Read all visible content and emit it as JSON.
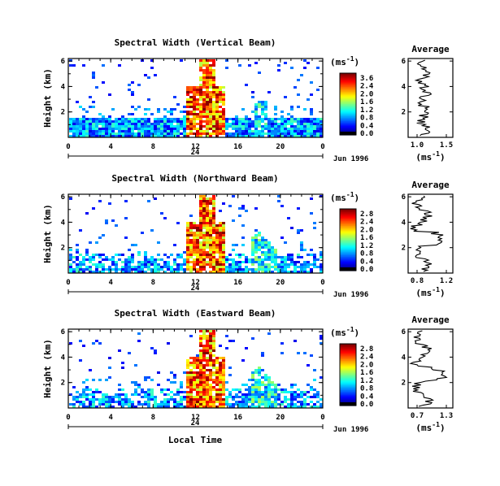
{
  "chart_data": [
    {
      "type": "heatmap",
      "title": "Spectral Width (Vertical Beam)",
      "ylabel": "Height (km)",
      "yticks": [
        "6",
        "4",
        "2"
      ],
      "xticks": [
        "0",
        "4",
        "8",
        "12",
        "16",
        "20",
        "0"
      ],
      "day_label": "24",
      "date_label": "Jun 1996",
      "colorbar": {
        "unit": "(ms",
        "unit_sup": "-1",
        "unit_close": ")",
        "ticks": [
          "3.6",
          "2.4",
          "2.0",
          "1.6",
          "1.2",
          "0.8",
          "0.4",
          "0.0"
        ]
      },
      "profile": {
        "title": "Average",
        "xticks": [
          "1.0",
          "1.5"
        ],
        "xlabel": "(ms",
        "xlabel_sup": "-1",
        "xlabel_close": ")",
        "yticks": [
          "6",
          "4",
          "2"
        ]
      }
    },
    {
      "type": "heatmap",
      "title": "Spectral Width (Northward Beam)",
      "ylabel": "Height (km)",
      "yticks": [
        "6",
        "4",
        "2"
      ],
      "xticks": [
        "0",
        "4",
        "8",
        "12",
        "16",
        "20",
        "0"
      ],
      "day_label": "24",
      "date_label": "Jun 1996",
      "colorbar": {
        "unit": "(ms",
        "unit_sup": "-1",
        "unit_close": ")",
        "ticks": [
          "2.8",
          "2.4",
          "2.0",
          "1.6",
          "1.2",
          "0.8",
          "0.4",
          "0.0"
        ]
      },
      "profile": {
        "title": "Average",
        "xticks": [
          "0.8",
          "1.2"
        ],
        "xlabel": "(ms",
        "xlabel_sup": "-1",
        "xlabel_close": ")",
        "yticks": [
          "6",
          "4",
          "2"
        ]
      }
    },
    {
      "type": "heatmap",
      "title": "Spectral Width (Eastward Beam)",
      "ylabel": "Height (km)",
      "yticks": [
        "6",
        "4",
        "2"
      ],
      "xticks": [
        "0",
        "4",
        "8",
        "12",
        "16",
        "20",
        "0"
      ],
      "day_label": "24",
      "date_label": "Jun 1996",
      "colorbar": {
        "unit": "(ms",
        "unit_sup": "-1",
        "unit_close": ")",
        "ticks": [
          "2.8",
          "2.4",
          "2.0",
          "1.6",
          "1.2",
          "0.8",
          "0.4",
          "0.0"
        ]
      },
      "profile": {
        "title": "Average",
        "xticks": [
          "0.7",
          "1.3"
        ],
        "xlabel": "(ms",
        "xlabel_sup": "-1",
        "xlabel_close": ")",
        "yticks": [
          "6",
          "4",
          "2"
        ]
      },
      "xlabel": "Local Time"
    }
  ]
}
